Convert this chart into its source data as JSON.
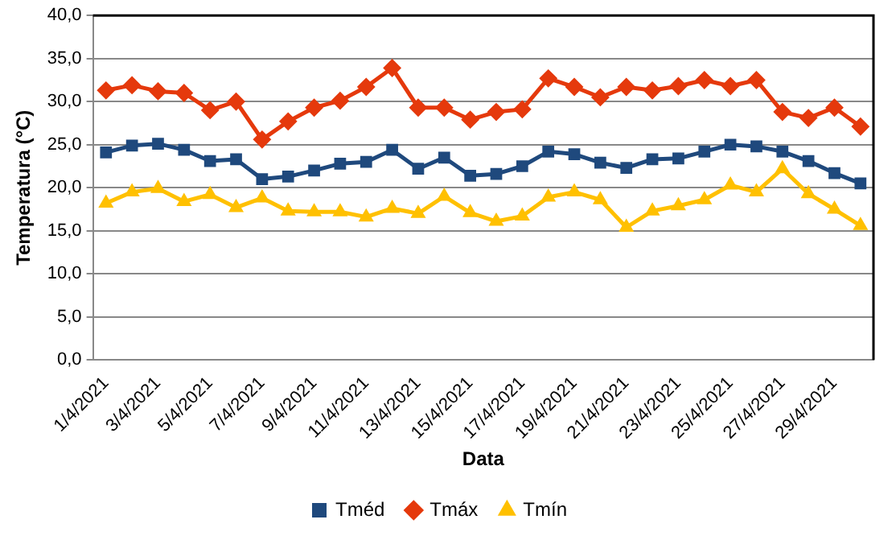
{
  "chart_data": {
    "type": "line",
    "xlabel": "Data",
    "ylabel": "Temperatura (°C)",
    "categories": [
      "1/4/2021",
      null,
      "3/4/2021",
      null,
      "5/4/2021",
      null,
      "7/4/2021",
      null,
      "9/4/2021",
      null,
      "11/4/2021",
      null,
      "13/4/2021",
      null,
      "15/4/2021",
      null,
      "17/4/2021",
      null,
      "19/4/2021",
      null,
      "21/4/2021",
      null,
      "23/4/2021",
      null,
      "25/4/2021",
      null,
      "27/4/2021",
      null,
      "29/4/2021",
      null
    ],
    "series": [
      {
        "name": "Tméd",
        "color": "#1f497d",
        "marker": "square",
        "values": [
          24.1,
          24.9,
          25.1,
          24.4,
          23.1,
          23.3,
          21.0,
          21.3,
          22.0,
          22.8,
          23.0,
          24.4,
          22.2,
          23.5,
          21.4,
          21.6,
          22.5,
          24.2,
          23.9,
          22.9,
          22.3,
          23.3,
          23.4,
          24.2,
          25.0,
          24.8,
          24.2,
          23.1,
          21.7,
          20.5
        ]
      },
      {
        "name": "Tmáx",
        "color": "#e5390c",
        "marker": "diamond",
        "values": [
          31.3,
          31.9,
          31.2,
          31.0,
          29.0,
          30.0,
          25.6,
          27.7,
          29.3,
          30.1,
          31.7,
          33.9,
          29.3,
          29.3,
          27.9,
          28.8,
          29.1,
          32.7,
          31.7,
          30.5,
          31.7,
          31.3,
          31.8,
          32.5,
          31.8,
          32.5,
          28.8,
          28.1,
          29.3,
          27.1
        ]
      },
      {
        "name": "Tmín",
        "color": "#ffc000",
        "marker": "triangle",
        "values": [
          18.2,
          19.5,
          19.9,
          18.4,
          19.2,
          17.7,
          18.8,
          17.3,
          17.2,
          17.2,
          16.6,
          17.6,
          17.0,
          19.0,
          17.1,
          16.1,
          16.7,
          18.9,
          19.5,
          18.6,
          15.4,
          17.3,
          17.9,
          18.6,
          20.3,
          19.5,
          22.2,
          19.3,
          17.5,
          15.6
        ]
      }
    ],
    "ylim": [
      0,
      40
    ],
    "yticks": [
      {
        "value": 0,
        "label": "0,0"
      },
      {
        "value": 5,
        "label": "5,0"
      },
      {
        "value": 10,
        "label": "10,0"
      },
      {
        "value": 15,
        "label": "15,0"
      },
      {
        "value": 20,
        "label": "20,0"
      },
      {
        "value": 25,
        "label": "25,0"
      },
      {
        "value": 30,
        "label": "30,0"
      },
      {
        "value": 35,
        "label": "35,0"
      },
      {
        "value": 40,
        "label": "40,0"
      }
    ],
    "grid": "y",
    "legend": "bottom",
    "line_style": "solid"
  }
}
